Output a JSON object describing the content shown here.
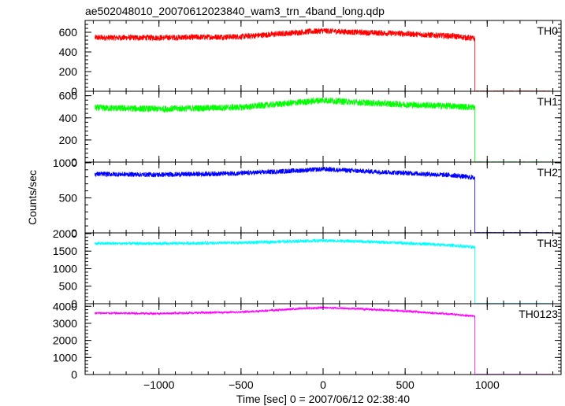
{
  "chart_data": {
    "type": "line",
    "title": "ae502048010_20070612023840_wam3_trn_4band_long.qdp",
    "xlabel": "Time [sec] 0 = 2007/06/12 02:38:40",
    "ylabel": "Counts/sec",
    "xlim": [
      -1450,
      1450
    ],
    "x_ticks": [
      -1000,
      -500,
      0,
      500,
      1000
    ],
    "x_tick_labels": [
      "−1000",
      "−500",
      "0",
      "500",
      "1000"
    ],
    "grid": false,
    "panels": [
      {
        "name": "TH0",
        "color": "#ff0000",
        "ylim": [
          0,
          720
        ],
        "y_ticks": [
          0,
          200,
          400,
          600
        ],
        "y_tick_labels": [
          "0",
          "200",
          "400",
          "600"
        ],
        "data_start": -1390,
        "data_end": 1390,
        "drop_time": 925,
        "level_points": [
          [
            -1390,
            545
          ],
          [
            -1000,
            545
          ],
          [
            -500,
            555
          ],
          [
            -100,
            605
          ],
          [
            0,
            615
          ],
          [
            200,
            600
          ],
          [
            500,
            585
          ],
          [
            800,
            560
          ],
          [
            925,
            535
          ]
        ],
        "noise_amplitude": 30,
        "post_drop_level": 3
      },
      {
        "name": "TH1",
        "color": "#00ff00",
        "ylim": [
          0,
          640
        ],
        "y_ticks": [
          0,
          200,
          400,
          600
        ],
        "y_tick_labels": [
          "0",
          "200",
          "400",
          "600"
        ],
        "data_start": -1390,
        "data_end": 1390,
        "drop_time": 925,
        "level_points": [
          [
            -1390,
            490
          ],
          [
            -1000,
            480
          ],
          [
            -500,
            495
          ],
          [
            -100,
            545
          ],
          [
            0,
            560
          ],
          [
            200,
            540
          ],
          [
            500,
            520
          ],
          [
            800,
            505
          ],
          [
            925,
            495
          ]
        ],
        "noise_amplitude": 30,
        "post_drop_level": 2
      },
      {
        "name": "TH2",
        "color": "#0000ff",
        "ylim": [
          0,
          1010
        ],
        "y_ticks": [
          0,
          500,
          1000
        ],
        "y_tick_labels": [
          "0",
          "500",
          "1000"
        ],
        "data_start": -1390,
        "data_end": 1390,
        "drop_time": 925,
        "level_points": [
          [
            -1390,
            840
          ],
          [
            -1000,
            830
          ],
          [
            -500,
            850
          ],
          [
            -100,
            895
          ],
          [
            0,
            910
          ],
          [
            200,
            885
          ],
          [
            500,
            855
          ],
          [
            800,
            820
          ],
          [
            925,
            785
          ]
        ],
        "noise_amplitude": 35,
        "post_drop_level": 5
      },
      {
        "name": "TH3",
        "color": "#00ffff",
        "ylim": [
          0,
          2020
        ],
        "y_ticks": [
          0,
          500,
          1000,
          1500,
          2000
        ],
        "y_tick_labels": [
          "0",
          "500",
          "1000",
          "1500",
          "2000"
        ],
        "data_start": -1390,
        "data_end": 1390,
        "drop_time": 925,
        "level_points": [
          [
            -1390,
            1720
          ],
          [
            -1000,
            1715
          ],
          [
            -500,
            1740
          ],
          [
            -100,
            1790
          ],
          [
            0,
            1800
          ],
          [
            200,
            1780
          ],
          [
            500,
            1730
          ],
          [
            800,
            1660
          ],
          [
            925,
            1610
          ]
        ],
        "noise_amplitude": 45,
        "post_drop_level": 8
      },
      {
        "name": "TH0123",
        "color": "#ff00ff",
        "ylim": [
          0,
          4150
        ],
        "y_ticks": [
          0,
          1000,
          2000,
          3000,
          4000
        ],
        "y_tick_labels": [
          "0",
          "1000",
          "2000",
          "3000",
          "4000"
        ],
        "data_start": -1390,
        "data_end": 1390,
        "drop_time": 925,
        "level_points": [
          [
            -1390,
            3600
          ],
          [
            -1000,
            3580
          ],
          [
            -500,
            3660
          ],
          [
            -100,
            3880
          ],
          [
            0,
            3920
          ],
          [
            200,
            3860
          ],
          [
            500,
            3720
          ],
          [
            800,
            3520
          ],
          [
            925,
            3420
          ]
        ],
        "noise_amplitude": 60,
        "post_drop_level": 15
      }
    ]
  }
}
